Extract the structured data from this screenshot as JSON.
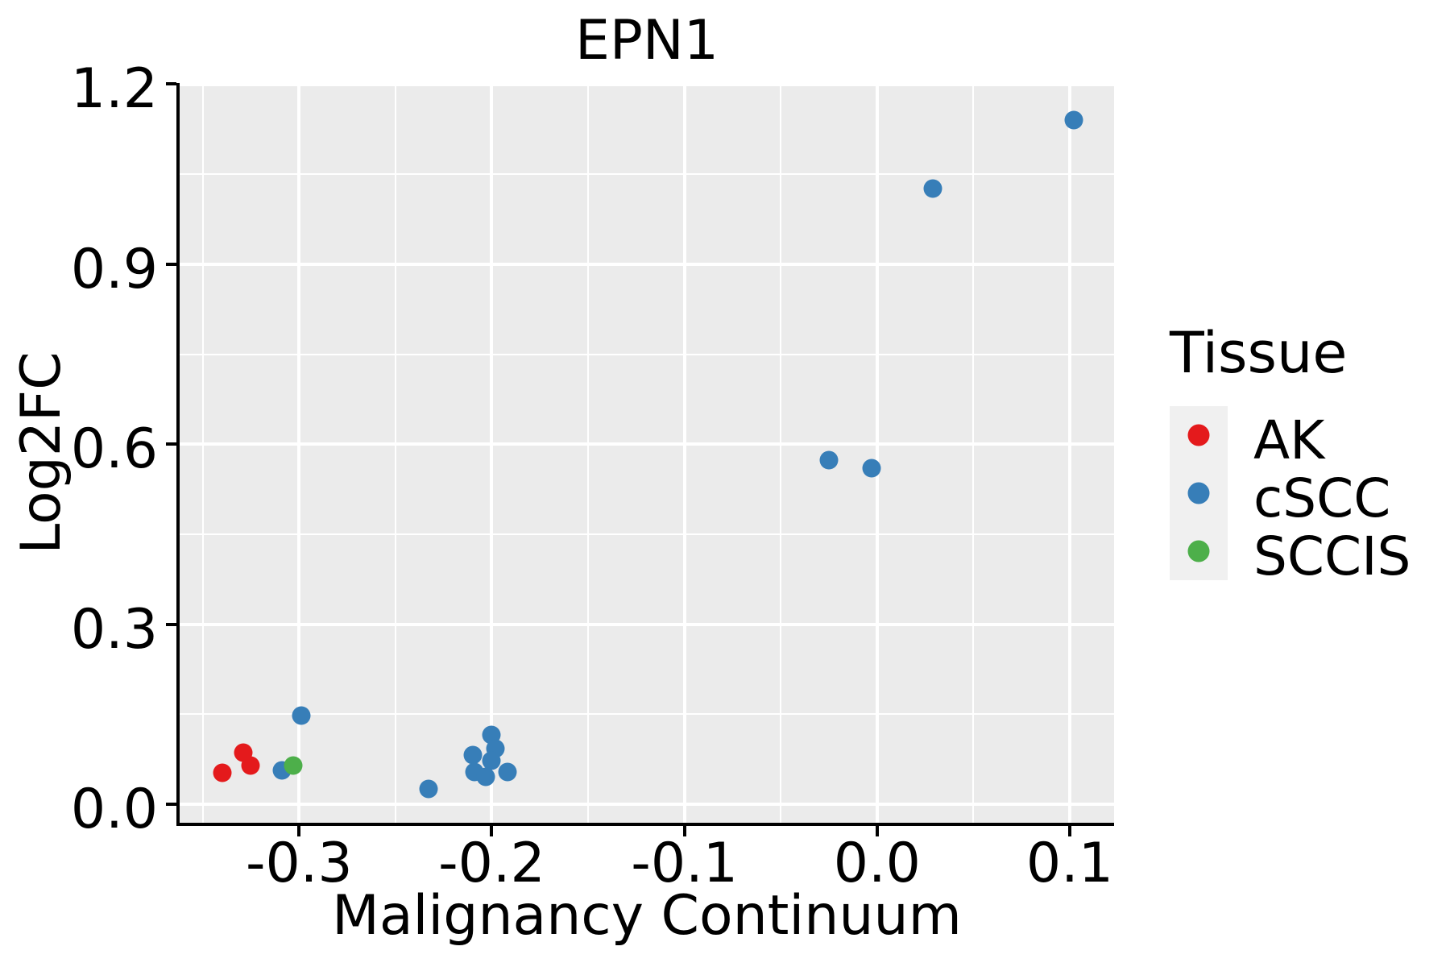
{
  "chart_data": {
    "type": "scatter",
    "title": "EPN1",
    "xlabel": "Malignancy Continuum",
    "ylabel": "Log2FC",
    "legend_title": "Tissue",
    "legend_position": "right",
    "grid": true,
    "panel_bg": "#EBEBEB",
    "grid_color": "#FFFFFF",
    "axis_color": "#000000",
    "text_color": "#000000",
    "legend_key_bg": "#F0F0F0",
    "xlim": [
      -0.362,
      0.123
    ],
    "ylim": [
      -0.031,
      1.202
    ],
    "x_ticks": [
      -0.3,
      -0.2,
      -0.1,
      0.0,
      0.1
    ],
    "x_tick_labels": [
      "-0.3",
      "-0.2",
      "-0.1",
      "0.0",
      "0.1"
    ],
    "y_ticks": [
      0.0,
      0.3,
      0.6,
      0.9,
      1.2
    ],
    "y_tick_labels": [
      "0.0",
      "0.3",
      "0.6",
      "0.9",
      "1.2"
    ],
    "x_minor_ticks": [
      -0.35,
      -0.25,
      -0.15,
      -0.05,
      0.05
    ],
    "y_minor_ticks": [
      0.15,
      0.45,
      0.75,
      1.05
    ],
    "series": [
      {
        "name": "AK",
        "color": "#E41A1C",
        "points": [
          [
            -0.34,
            0.052
          ],
          [
            -0.329,
            0.086
          ],
          [
            -0.325,
            0.064
          ]
        ]
      },
      {
        "name": "cSCC",
        "color": "#377EB8",
        "points": [
          [
            -0.299,
            0.147
          ],
          [
            -0.309,
            0.056
          ],
          [
            -0.233,
            0.025
          ],
          [
            -0.21,
            0.082
          ],
          [
            -0.2,
            0.115
          ],
          [
            -0.198,
            0.092
          ],
          [
            -0.209,
            0.053
          ],
          [
            -0.2,
            0.072
          ],
          [
            -0.192,
            0.053
          ],
          [
            -0.203,
            0.046
          ],
          [
            -0.025,
            0.574
          ],
          [
            -0.003,
            0.56
          ],
          [
            0.029,
            1.026
          ],
          [
            0.102,
            1.14
          ]
        ]
      },
      {
        "name": "SCCIS",
        "color": "#4DAF4A",
        "points": [
          [
            -0.303,
            0.064
          ]
        ]
      }
    ]
  }
}
